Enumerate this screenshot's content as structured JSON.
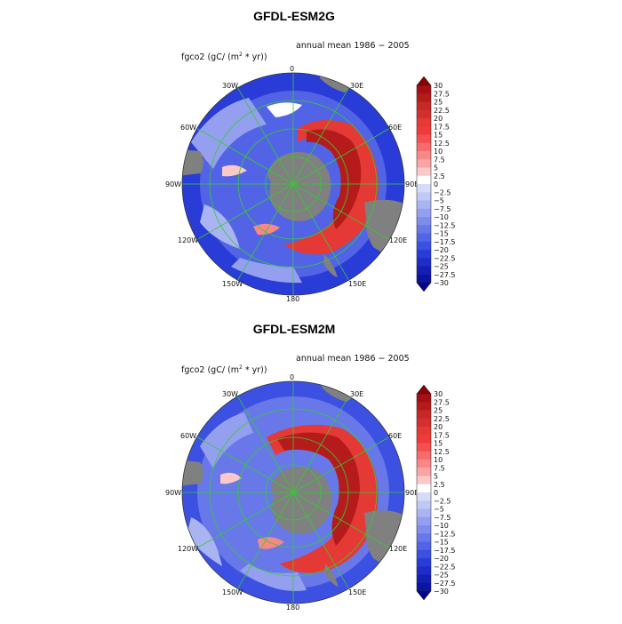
{
  "colorbar": {
    "ticks": [
      "30",
      "27.5",
      "25",
      "22.5",
      "20",
      "17.5",
      "15",
      "12.5",
      "10",
      "7.5",
      "5",
      "2.5",
      "0",
      "−2.5",
      "−5",
      "−7.5",
      "−10",
      "−12.5",
      "−15",
      "−17.5",
      "−20",
      "−22.5",
      "−25",
      "−27.5",
      "−30"
    ],
    "max": 30,
    "min": -30,
    "step": 2.5,
    "colors_top_to_bottom": [
      "#8b0000",
      "#a50f15",
      "#b51b1b",
      "#c62828",
      "#d32f2f",
      "#e53935",
      "#ef3b3b",
      "#f45050",
      "#f66b6b",
      "#f88888",
      "#faa5a5",
      "#fcc8c8",
      "#ffffff",
      "#d6dcf8",
      "#c0c8f5",
      "#aab4f2",
      "#94a0ef",
      "#7e8cec",
      "#6878e8",
      "#5264e5",
      "#3c50e2",
      "#2a3cd8",
      "#1e2dc8",
      "#1420b4",
      "#0a14a0",
      "#00008b"
    ]
  },
  "panels": [
    {
      "title": "GFDL-ESM2G",
      "subtitle": "annual mean 1986 − 2005",
      "var_prefix": "fgco2  (gC/ (m",
      "var_sup": "2",
      "var_suffix": " * yr))",
      "lon_labels": {
        "l0": "0",
        "l30e": "30E",
        "l60e": "60E",
        "l90e": "90E",
        "l120e": "120E",
        "l150e": "150E",
        "l180": "180",
        "l150w": "150W",
        "l120w": "120W",
        "l90w": "90W",
        "l60w": "60W",
        "l30w": "30W"
      }
    },
    {
      "title": "GFDL-ESM2M",
      "subtitle": "annual mean 1986 − 2005",
      "var_prefix": "fgco2  (gC/ (m",
      "var_sup": "2",
      "var_suffix": " * yr))",
      "lon_labels": {
        "l0": "0",
        "l30e": "30E",
        "l60e": "60E",
        "l90e": "90E",
        "l120e": "120E",
        "l150e": "150E",
        "l180": "180",
        "l150w": "150W",
        "l120w": "120W",
        "l90w": "90W",
        "l60w": "60W",
        "l30w": "30W"
      }
    }
  ],
  "colors": {
    "land": "#808080",
    "grid": "#33cc33",
    "ocean_neg": "#3c50e2",
    "ocean_pos": "#d32f2f"
  }
}
